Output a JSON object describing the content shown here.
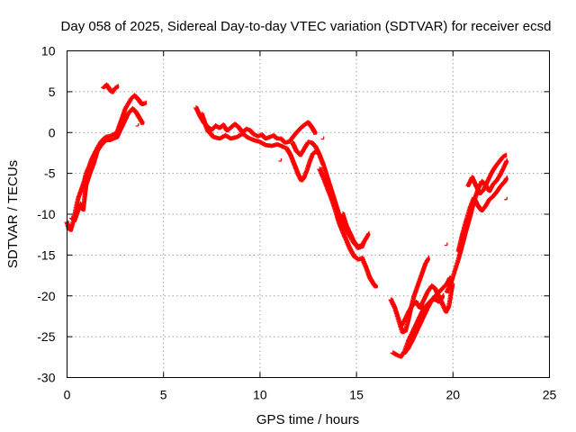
{
  "chart_data": {
    "type": "scatter",
    "title": "Day 058 of 2025, Sidereal Day-to-day VTEC variation (SDTVAR) for receiver ecsd",
    "xlabel": "GPS time / hours",
    "ylabel": "SDTVAR / TECUs",
    "xlim": [
      0,
      25
    ],
    "ylim": [
      -30,
      10
    ],
    "xticks": [
      0,
      5,
      10,
      15,
      20,
      25
    ],
    "yticks": [
      -30,
      -25,
      -20,
      -15,
      -10,
      -5,
      0,
      5,
      10
    ],
    "grid": true,
    "marker": "+",
    "color": "#ff0000",
    "series": [
      {
        "name": "ecsd",
        "tracks": [
          [
            [
              0.0,
              -11.0
            ],
            [
              0.1,
              -11.8
            ],
            [
              0.2,
              -12.0
            ],
            [
              0.3,
              -11.2
            ],
            [
              0.4,
              -10.2
            ],
            [
              0.5,
              -9.0
            ],
            [
              0.6,
              -8.0
            ],
            [
              0.75,
              -7.0
            ],
            [
              0.9,
              -6.0
            ],
            [
              1.0,
              -5.0
            ],
            [
              1.15,
              -4.2
            ],
            [
              1.3,
              -3.2
            ],
            [
              1.45,
              -2.5
            ],
            [
              1.6,
              -1.8
            ],
            [
              1.75,
              -1.2
            ],
            [
              1.9,
              -0.8
            ],
            [
              2.0,
              -0.6
            ],
            [
              2.2,
              -0.5
            ],
            [
              2.4,
              -0.3
            ],
            [
              2.6,
              0.0
            ],
            [
              2.75,
              1.0
            ],
            [
              2.9,
              2.0
            ],
            [
              3.05,
              3.0
            ],
            [
              3.2,
              3.6
            ],
            [
              3.35,
              4.2
            ],
            [
              3.5,
              4.5
            ],
            [
              3.7,
              4.0
            ],
            [
              3.9,
              3.4
            ],
            [
              4.1,
              3.6
            ]
          ],
          [
            [
              0.25,
              -10.5
            ],
            [
              0.4,
              -10.8
            ],
            [
              0.55,
              -9.8
            ],
            [
              0.7,
              -8.8
            ],
            [
              0.85,
              -9.5
            ],
            [
              1.0,
              -6.5
            ],
            [
              1.2,
              -5.0
            ],
            [
              1.4,
              -3.8
            ],
            [
              1.6,
              -2.2
            ],
            [
              1.8,
              -1.5
            ],
            [
              2.0,
              -1.0
            ],
            [
              2.2,
              -1.0
            ],
            [
              2.4,
              -0.8
            ],
            [
              2.6,
              -0.6
            ],
            [
              2.8,
              0.4
            ],
            [
              3.0,
              1.4
            ],
            [
              3.2,
              2.4
            ],
            [
              3.4,
              2.9
            ],
            [
              3.6,
              2.4
            ],
            [
              3.8,
              1.6
            ],
            [
              3.95,
              1.0
            ]
          ],
          [
            [
              1.9,
              5.5
            ],
            [
              2.05,
              5.8
            ],
            [
              2.2,
              5.3
            ],
            [
              2.35,
              4.9
            ],
            [
              2.5,
              5.4
            ],
            [
              2.65,
              5.6
            ]
          ],
          [
            [
              6.7,
              3.0
            ],
            [
              6.9,
              2.0
            ],
            [
              7.1,
              1.2
            ],
            [
              7.3,
              0.6
            ],
            [
              7.5,
              0.3
            ],
            [
              7.7,
              0.8
            ],
            [
              7.9,
              0.5
            ],
            [
              8.1,
              0.9
            ],
            [
              8.3,
              0.2
            ],
            [
              8.5,
              0.6
            ],
            [
              8.7,
              1.0
            ],
            [
              8.9,
              0.6
            ],
            [
              9.1,
              0.0
            ],
            [
              9.3,
              0.4
            ],
            [
              9.5,
              0.2
            ],
            [
              9.7,
              -0.3
            ],
            [
              9.9,
              -0.5
            ],
            [
              10.1,
              -0.3
            ],
            [
              10.3,
              -0.8
            ],
            [
              10.5,
              -0.6
            ],
            [
              10.7,
              -0.4
            ],
            [
              10.9,
              -0.8
            ],
            [
              11.1,
              -0.8
            ],
            [
              11.3,
              -1.3
            ],
            [
              11.5,
              -1.2
            ],
            [
              11.7,
              -0.6
            ],
            [
              11.9,
              0.0
            ],
            [
              12.1,
              0.5
            ],
            [
              12.3,
              0.9
            ],
            [
              12.5,
              1.2
            ],
            [
              12.7,
              0.6
            ],
            [
              12.9,
              -0.2
            ]
          ],
          [
            [
              7.0,
              2.2
            ],
            [
              7.3,
              0.2
            ],
            [
              7.6,
              -0.6
            ],
            [
              7.9,
              -0.8
            ],
            [
              8.2,
              -0.4
            ],
            [
              8.5,
              -0.8
            ],
            [
              8.8,
              -0.6
            ],
            [
              9.1,
              -0.2
            ],
            [
              9.4,
              -0.7
            ],
            [
              9.7,
              -1.0
            ],
            [
              10.0,
              -1.2
            ],
            [
              10.3,
              -1.6
            ],
            [
              10.6,
              -1.7
            ],
            [
              10.9,
              -1.5
            ],
            [
              11.2,
              -1.8
            ],
            [
              11.4,
              -2.0
            ],
            [
              11.6,
              -2.8
            ],
            [
              11.8,
              -4.0
            ],
            [
              12.0,
              -5.2
            ],
            [
              12.15,
              -5.9
            ],
            [
              12.3,
              -5.5
            ],
            [
              12.45,
              -4.6
            ],
            [
              12.6,
              -3.5
            ],
            [
              12.75,
              -2.6
            ],
            [
              12.9,
              -2.4
            ],
            [
              13.05,
              -2.6
            ]
          ],
          [
            [
              11.7,
              -1.3
            ],
            [
              11.9,
              -2.3
            ],
            [
              12.1,
              -2.8
            ],
            [
              12.3,
              -2.0
            ],
            [
              12.5,
              -1.2
            ],
            [
              12.7,
              -1.3
            ],
            [
              12.9,
              -1.8
            ],
            [
              13.1,
              -2.8
            ],
            [
              13.3,
              -4.0
            ],
            [
              13.5,
              -5.5
            ],
            [
              13.7,
              -7.0
            ],
            [
              13.9,
              -8.5
            ],
            [
              14.1,
              -10.0
            ],
            [
              14.3,
              -11.2
            ],
            [
              14.5,
              -12.0
            ],
            [
              14.7,
              -12.8
            ],
            [
              14.9,
              -13.6
            ],
            [
              15.1,
              -14.0
            ],
            [
              15.3,
              -13.8
            ],
            [
              15.5,
              -13.0
            ],
            [
              15.65,
              -12.4
            ]
          ],
          [
            [
              13.1,
              -4.5
            ],
            [
              13.3,
              -5.6
            ],
            [
              13.5,
              -6.8
            ],
            [
              13.7,
              -8.0
            ],
            [
              13.9,
              -9.4
            ],
            [
              14.1,
              -11.0
            ],
            [
              14.3,
              -12.2
            ],
            [
              14.5,
              -13.3
            ],
            [
              14.7,
              -14.4
            ],
            [
              14.9,
              -15.2
            ],
            [
              15.1,
              -15.6
            ],
            [
              15.3,
              -15.4
            ],
            [
              15.5,
              -16.5
            ],
            [
              15.7,
              -17.8
            ],
            [
              15.9,
              -18.6
            ],
            [
              16.05,
              -19.0
            ]
          ],
          [
            [
              14.3,
              -10.0
            ],
            [
              14.5,
              -11.5
            ],
            [
              14.7,
              -12.5
            ],
            [
              14.9,
              -13.5
            ],
            [
              15.1,
              -14.2
            ],
            [
              15.3,
              -14.0
            ],
            [
              15.4,
              -13.4
            ]
          ],
          [
            [
              16.8,
              -20.5
            ],
            [
              17.0,
              -21.5
            ],
            [
              17.2,
              -23.0
            ],
            [
              17.4,
              -24.5
            ],
            [
              17.55,
              -24.3
            ],
            [
              17.7,
              -23.0
            ],
            [
              17.85,
              -21.4
            ],
            [
              18.0,
              -20.0
            ],
            [
              18.15,
              -19.0
            ],
            [
              18.3,
              -18.0
            ],
            [
              18.45,
              -17.0
            ],
            [
              18.6,
              -16.0
            ],
            [
              18.75,
              -15.4
            ]
          ],
          [
            [
              17.3,
              -23.8
            ],
            [
              17.5,
              -23.0
            ],
            [
              17.7,
              -22.0
            ],
            [
              17.9,
              -21.2
            ],
            [
              18.1,
              -20.8
            ],
            [
              18.3,
              -21.5
            ],
            [
              18.5,
              -20.5
            ],
            [
              18.7,
              -19.5
            ],
            [
              18.9,
              -18.8
            ],
            [
              19.1,
              -19.2
            ],
            [
              19.3,
              -20.2
            ],
            [
              19.5,
              -21.2
            ],
            [
              19.65,
              -22.0
            ],
            [
              19.8,
              -21.3
            ],
            [
              20.0,
              -18.5
            ]
          ],
          [
            [
              16.9,
              -27.0
            ],
            [
              17.1,
              -27.3
            ],
            [
              17.3,
              -27.5
            ],
            [
              17.5,
              -26.8
            ],
            [
              17.7,
              -25.5
            ],
            [
              17.9,
              -24.5
            ],
            [
              18.1,
              -23.5
            ],
            [
              18.3,
              -22.5
            ],
            [
              18.5,
              -21.5
            ],
            [
              18.7,
              -21.0
            ],
            [
              18.9,
              -20.5
            ],
            [
              19.1,
              -20.0
            ],
            [
              19.3,
              -19.5
            ],
            [
              19.5,
              -19.0
            ],
            [
              19.7,
              -18.5
            ],
            [
              19.85,
              -17.8
            ]
          ],
          [
            [
              17.5,
              -27.0
            ],
            [
              17.7,
              -26.4
            ],
            [
              17.9,
              -25.5
            ],
            [
              18.1,
              -24.5
            ],
            [
              18.3,
              -23.5
            ],
            [
              18.5,
              -22.5
            ],
            [
              18.7,
              -21.5
            ],
            [
              18.9,
              -20.6
            ],
            [
              19.1,
              -20.5
            ],
            [
              19.3,
              -20.8
            ],
            [
              19.5,
              -20.0
            ]
          ],
          [
            [
              19.7,
              -19.5
            ],
            [
              19.9,
              -18.5
            ],
            [
              20.1,
              -17.0
            ],
            [
              20.3,
              -15.5
            ],
            [
              20.5,
              -13.8
            ],
            [
              20.7,
              -12.0
            ],
            [
              20.9,
              -10.3
            ],
            [
              21.1,
              -8.5
            ],
            [
              21.3,
              -7.0
            ],
            [
              21.5,
              -6.0
            ],
            [
              21.7,
              -6.5
            ],
            [
              21.9,
              -7.2
            ],
            [
              22.1,
              -6.3
            ],
            [
              22.3,
              -5.8
            ],
            [
              22.5,
              -5.0
            ],
            [
              22.7,
              -4.0
            ],
            [
              22.8,
              -3.5
            ]
          ],
          [
            [
              20.3,
              -14.5
            ],
            [
              20.5,
              -12.5
            ],
            [
              20.7,
              -10.8
            ],
            [
              20.9,
              -9.2
            ],
            [
              21.1,
              -8.0
            ],
            [
              21.3,
              -9.0
            ],
            [
              21.5,
              -9.6
            ],
            [
              21.7,
              -9.0
            ],
            [
              21.9,
              -8.2
            ],
            [
              22.1,
              -7.8
            ],
            [
              22.3,
              -7.2
            ],
            [
              22.5,
              -6.5
            ],
            [
              22.7,
              -6.0
            ],
            [
              22.8,
              -5.6
            ]
          ],
          [
            [
              20.8,
              -6.5
            ],
            [
              21.0,
              -5.5
            ],
            [
              21.2,
              -6.5
            ],
            [
              21.4,
              -7.5
            ],
            [
              21.6,
              -7.0
            ],
            [
              21.8,
              -6.0
            ],
            [
              22.0,
              -5.0
            ],
            [
              22.2,
              -4.2
            ],
            [
              22.4,
              -3.6
            ],
            [
              22.6,
              -3.0
            ],
            [
              22.75,
              -2.8
            ]
          ]
        ],
        "points": [
          [
            19.7,
            -13.8
          ],
          [
            22.8,
            -8.2
          ],
          [
            13.3,
            -0.8
          ],
          [
            3.7,
            0.8
          ],
          [
            0.2,
            -11.5
          ],
          [
            11.1,
            -3.5
          ],
          [
            16.9,
            -21.0
          ]
        ]
      }
    ]
  }
}
